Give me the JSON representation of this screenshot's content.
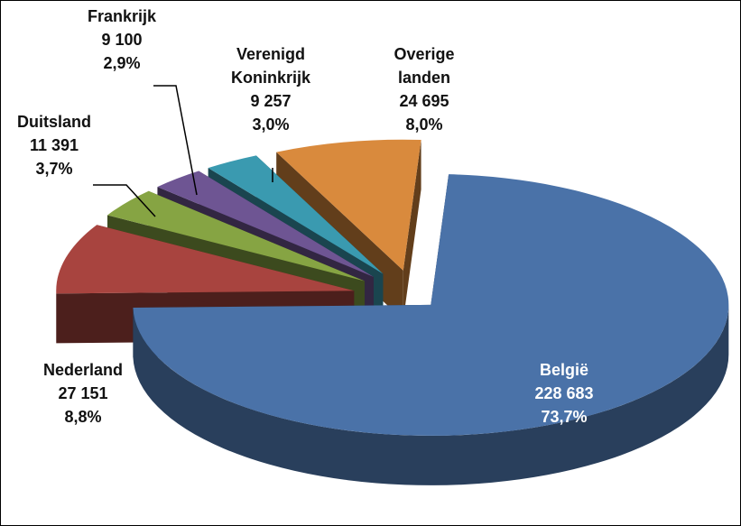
{
  "chart_data": {
    "type": "pie",
    "categories": [
      "België",
      "Nederland",
      "Duitsland",
      "Frankrijk",
      "Verenigd Koninkrijk",
      "Overige landen"
    ],
    "values": [
      228683,
      27151,
      11391,
      9100,
      9257,
      24695
    ],
    "value_labels": [
      "228 683",
      "27 151",
      "11 391",
      "9 100",
      "9 257",
      "24 695"
    ],
    "percentages": [
      73.7,
      8.8,
      3.7,
      2.9,
      3.0,
      8.0
    ],
    "percentage_labels": [
      "73,7%",
      "8,8%",
      "3,7%",
      "2,9%",
      "3,0%",
      "8,0%"
    ],
    "colors": [
      "#4a72a8",
      "#a8443f",
      "#86a443",
      "#6e5593",
      "#3a9ab0",
      "#d98a3d"
    ]
  }
}
